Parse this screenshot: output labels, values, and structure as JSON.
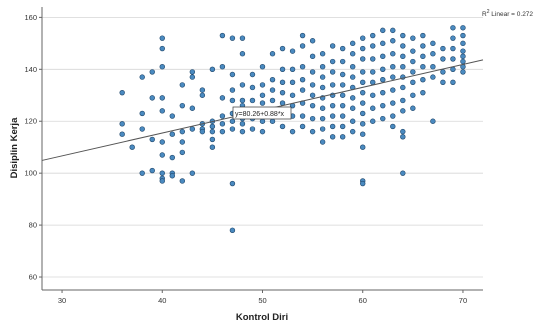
{
  "chart_data": {
    "type": "scatter",
    "xlabel": "Kontrol Diri",
    "ylabel": "Disiplin Kerja",
    "xlim": [
      28,
      72
    ],
    "ylim": [
      55,
      164
    ],
    "x_ticks": [
      30,
      40,
      50,
      60,
      70
    ],
    "y_ticks": [
      60,
      80,
      100,
      120,
      140,
      160
    ],
    "grid": "horizontal",
    "marker_color": "#4a8ac0",
    "marker_edge_color": "#20476b",
    "fit_line_color": "#555555",
    "fit": {
      "type": "linear",
      "intercept": 80.26,
      "slope": 0.88,
      "equation_label": "y=80.26+0.88*x",
      "r2_prefix": "R",
      "r2_sup": "2",
      "r2_suffix": " Linear = 0.272"
    },
    "x": [
      36,
      36,
      36,
      37,
      38,
      38,
      38,
      39,
      39,
      39,
      39,
      40,
      40,
      40,
      40,
      40,
      40,
      40,
      40,
      40,
      41,
      41,
      41,
      41,
      42,
      42,
      42,
      42,
      42,
      43,
      43,
      43,
      43,
      43,
      44,
      44,
      44,
      44,
      44,
      45,
      45,
      45,
      45,
      45,
      45,
      46,
      46,
      46,
      46,
      46,
      46,
      47,
      47,
      47,
      47,
      47,
      47,
      47,
      48,
      48,
      48,
      48,
      48,
      48,
      48,
      48,
      49,
      49,
      49,
      49,
      49,
      49,
      50,
      50,
      50,
      50,
      50,
      50,
      50,
      51,
      51,
      51,
      51,
      51,
      51,
      52,
      52,
      52,
      52,
      52,
      52,
      52,
      53,
      53,
      53,
      53,
      53,
      53,
      53,
      54,
      54,
      54,
      54,
      54,
      54,
      54,
      54,
      55,
      55,
      55,
      55,
      55,
      55,
      55,
      55,
      56,
      56,
      56,
      56,
      56,
      56,
      56,
      56,
      56,
      57,
      57,
      57,
      57,
      57,
      57,
      57,
      57,
      57,
      58,
      58,
      58,
      58,
      58,
      58,
      58,
      58,
      58,
      59,
      59,
      59,
      59,
      59,
      59,
      59,
      59,
      59,
      60,
      60,
      60,
      60,
      60,
      60,
      60,
      60,
      60,
      60,
      60,
      61,
      61,
      61,
      61,
      61,
      61,
      61,
      61,
      62,
      62,
      62,
      62,
      62,
      62,
      62,
      62,
      63,
      63,
      63,
      63,
      63,
      63,
      63,
      63,
      63,
      64,
      64,
      64,
      64,
      64,
      64,
      64,
      64,
      64,
      64,
      65,
      65,
      65,
      65,
      65,
      65,
      65,
      66,
      66,
      66,
      66,
      66,
      66,
      67,
      67,
      67,
      67,
      67,
      68,
      68,
      68,
      68,
      69,
      69,
      69,
      69,
      69,
      69,
      70,
      70,
      70,
      70,
      70,
      70,
      70,
      70,
      47,
      60,
      60,
      64,
      38,
      40,
      41,
      42,
      47
    ],
    "y": [
      131,
      119,
      115,
      110,
      137,
      123,
      117,
      101,
      139,
      129,
      113,
      152,
      148,
      141,
      129,
      124,
      112,
      107,
      98,
      97,
      122,
      115,
      106,
      100,
      134,
      126,
      116,
      112,
      108,
      139,
      137,
      125,
      117,
      100,
      132,
      130,
      119,
      117,
      116,
      140,
      120,
      118,
      116,
      113,
      110,
      153,
      141,
      129,
      122,
      119,
      116,
      152,
      138,
      132,
      128,
      123,
      120,
      117,
      152,
      146,
      134,
      128,
      126,
      121,
      119,
      116,
      138,
      133,
      128,
      124,
      121,
      117,
      141,
      134,
      130,
      127,
      124,
      120,
      116,
      146,
      136,
      132,
      128,
      124,
      120,
      148,
      140,
      135,
      131,
      127,
      123,
      118,
      147,
      140,
      135,
      130,
      126,
      122,
      116,
      153,
      149,
      141,
      136,
      132,
      127,
      122,
      118,
      151,
      145,
      139,
      134,
      130,
      126,
      121,
      116,
      146,
      141,
      137,
      133,
      129,
      125,
      121,
      117,
      112,
      149,
      143,
      139,
      134,
      130,
      126,
      122,
      118,
      114,
      148,
      143,
      138,
      134,
      130,
      126,
      122,
      118,
      114,
      150,
      146,
      141,
      137,
      133,
      129,
      125,
      120,
      116,
      152,
      148,
      144,
      139,
      135,
      131,
      127,
      123,
      119,
      115,
      110,
      153,
      149,
      144,
      139,
      135,
      130,
      125,
      120,
      155,
      150,
      145,
      140,
      136,
      131,
      126,
      121,
      155,
      151,
      146,
      141,
      137,
      132,
      127,
      122,
      118,
      153,
      149,
      145,
      141,
      137,
      133,
      128,
      124,
      116,
      114,
      152,
      147,
      143,
      139,
      135,
      130,
      125,
      153,
      149,
      145,
      141,
      136,
      131,
      150,
      146,
      141,
      137,
      120,
      148,
      144,
      139,
      135,
      156,
      152,
      148,
      144,
      140,
      135,
      156,
      153,
      150,
      147,
      145,
      143,
      141,
      139,
      96,
      97,
      96,
      100,
      100,
      100,
      99,
      97,
      78
    ]
  }
}
